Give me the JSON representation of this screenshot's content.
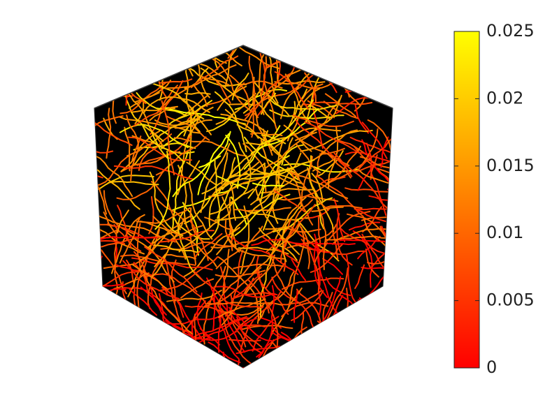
{
  "chart_data": {
    "type": "streamline",
    "colorbar": {
      "clim": [
        0,
        0.025
      ],
      "ticks": [
        0,
        0.005,
        0.01,
        0.015,
        0.02,
        0.025
      ],
      "colormap": [
        "#ff0000",
        "#ffff00"
      ]
    }
  }
}
